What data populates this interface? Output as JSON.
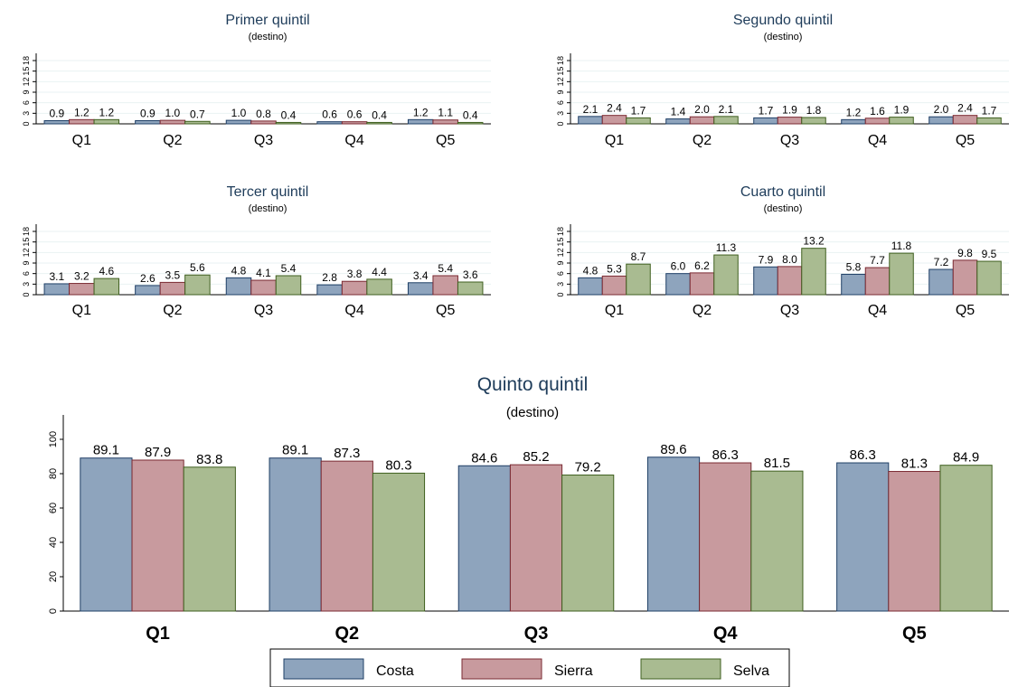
{
  "colors": {
    "background": "#ffffff",
    "grid": "#eaf2f3",
    "axis": "#000000",
    "title": "#1e3c5a",
    "series": [
      "#8ea4bd",
      "#c89a9e",
      "#a9bb91"
    ],
    "series_edge": [
      "#1f3f66",
      "#7a2a32",
      "#3f5f1f"
    ]
  },
  "legend": {
    "placement": "bottom",
    "items": [
      "Costa",
      "Sierra",
      "Selva"
    ]
  },
  "chart_data": [
    {
      "type": "bar",
      "title": "Primer quintil",
      "subtitle": "(destino)",
      "categories": [
        "Q1",
        "Q2",
        "Q3",
        "Q4",
        "Q5"
      ],
      "ylim": [
        0,
        18
      ],
      "yticks": [
        "0",
        "3",
        "6",
        "9",
        "12",
        "15",
        "18"
      ],
      "grid": true,
      "series": [
        {
          "name": "Costa",
          "values": [
            0.9,
            0.9,
            1.0,
            0.6,
            1.2
          ],
          "labels": [
            "0.9",
            "0.9",
            "1.0",
            "0.6",
            "1.2"
          ]
        },
        {
          "name": "Sierra",
          "values": [
            1.2,
            1.0,
            0.8,
            0.6,
            1.1
          ],
          "labels": [
            "1.2",
            "1.0",
            "0.8",
            "0.6",
            "1.1"
          ]
        },
        {
          "name": "Selva",
          "values": [
            1.2,
            0.7,
            0.4,
            0.4,
            0.4
          ],
          "labels": [
            "1.2",
            "0.7",
            "0.4",
            "0.4",
            "0.4"
          ]
        }
      ]
    },
    {
      "type": "bar",
      "title": "Segundo quintil",
      "subtitle": "(destino)",
      "categories": [
        "Q1",
        "Q2",
        "Q3",
        "Q4",
        "Q5"
      ],
      "ylim": [
        0,
        18
      ],
      "yticks": [
        "0",
        "3",
        "6",
        "9",
        "12",
        "15",
        "18"
      ],
      "grid": true,
      "series": [
        {
          "name": "Costa",
          "values": [
            2.1,
            1.4,
            1.7,
            1.2,
            2.0
          ],
          "labels": [
            "2.1",
            "1.4",
            "1.7",
            "1.2",
            "2.0"
          ]
        },
        {
          "name": "Sierra",
          "values": [
            2.4,
            2.0,
            1.9,
            1.6,
            2.4
          ],
          "labels": [
            "2.4",
            "2.0",
            "1.9",
            "1.6",
            "2.4"
          ]
        },
        {
          "name": "Selva",
          "values": [
            1.7,
            2.1,
            1.8,
            1.9,
            1.7
          ],
          "labels": [
            "1.7",
            "2.1",
            "1.8",
            "1.9",
            "1.7"
          ]
        }
      ]
    },
    {
      "type": "bar",
      "title": "Tercer quintil",
      "subtitle": "(destino)",
      "categories": [
        "Q1",
        "Q2",
        "Q3",
        "Q4",
        "Q5"
      ],
      "ylim": [
        0,
        18
      ],
      "yticks": [
        "0",
        "3",
        "6",
        "9",
        "12",
        "15",
        "18"
      ],
      "grid": true,
      "series": [
        {
          "name": "Costa",
          "values": [
            3.1,
            2.6,
            4.8,
            2.8,
            3.4
          ],
          "labels": [
            "3.1",
            "2.6",
            "4.8",
            "2.8",
            "3.4"
          ]
        },
        {
          "name": "Sierra",
          "values": [
            3.2,
            3.5,
            4.1,
            3.8,
            5.4
          ],
          "labels": [
            "3.2",
            "3.5",
            "4.1",
            "3.8",
            "5.4"
          ]
        },
        {
          "name": "Selva",
          "values": [
            4.6,
            5.6,
            5.4,
            4.4,
            3.6
          ],
          "labels": [
            "4.6",
            "5.6",
            "5.4",
            "4.4",
            "3.6"
          ]
        }
      ]
    },
    {
      "type": "bar",
      "title": "Cuarto quintil",
      "subtitle": "(destino)",
      "categories": [
        "Q1",
        "Q2",
        "Q3",
        "Q4",
        "Q5"
      ],
      "ylim": [
        0,
        18
      ],
      "yticks": [
        "0",
        "3",
        "6",
        "9",
        "12",
        "15",
        "18"
      ],
      "grid": true,
      "series": [
        {
          "name": "Costa",
          "values": [
            4.8,
            6.0,
            7.9,
            5.8,
            7.2
          ],
          "labels": [
            "4.8",
            "6.0",
            "7.9",
            "5.8",
            "7.2"
          ]
        },
        {
          "name": "Sierra",
          "values": [
            5.3,
            6.2,
            8.0,
            7.7,
            9.8
          ],
          "labels": [
            "5.3",
            "6.2",
            "8.0",
            "7.7",
            "9.8"
          ]
        },
        {
          "name": "Selva",
          "values": [
            8.7,
            11.3,
            13.2,
            11.8,
            9.5
          ],
          "labels": [
            "8.7",
            "11.3",
            "13.2",
            "11.8",
            "9.5"
          ]
        }
      ]
    },
    {
      "type": "bar",
      "title": "Quinto quintil",
      "subtitle": "(destino)",
      "categories": [
        "Q1",
        "Q2",
        "Q3",
        "Q4",
        "Q5"
      ],
      "ylim": [
        0,
        110
      ],
      "yticks": [
        "0",
        "20",
        "40",
        "60",
        "80",
        "100"
      ],
      "grid": false,
      "series": [
        {
          "name": "Costa",
          "values": [
            89.1,
            89.1,
            84.6,
            89.6,
            86.3
          ],
          "labels": [
            "89.1",
            "89.1",
            "84.6",
            "89.6",
            "86.3"
          ]
        },
        {
          "name": "Sierra",
          "values": [
            87.9,
            87.3,
            85.2,
            86.3,
            81.3
          ],
          "labels": [
            "87.9",
            "87.3",
            "85.2",
            "86.3",
            "81.3"
          ]
        },
        {
          "name": "Selva",
          "values": [
            83.8,
            80.3,
            79.2,
            81.5,
            84.9
          ],
          "labels": [
            "83.8",
            "80.3",
            "79.2",
            "81.5",
            "84.9"
          ]
        }
      ]
    }
  ]
}
